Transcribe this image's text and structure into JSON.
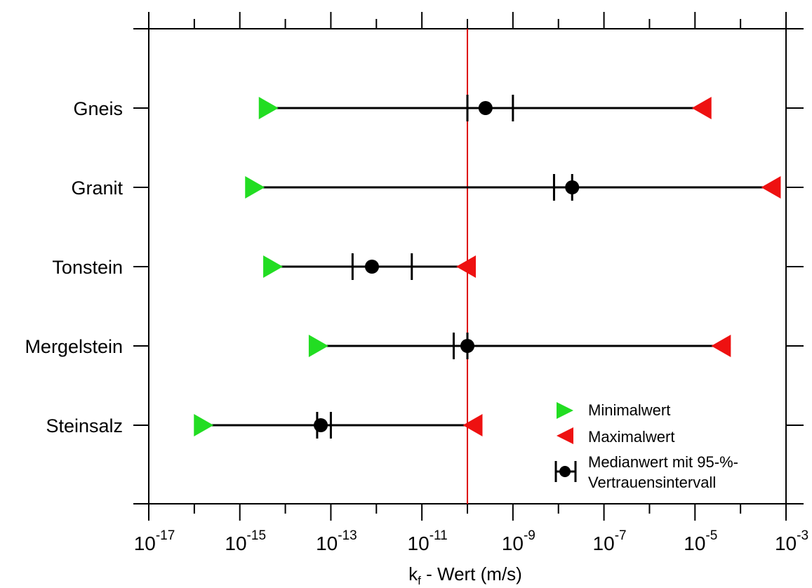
{
  "chart_data": {
    "type": "range",
    "x_scale": "log10",
    "xlim": [
      1e-17,
      0.001
    ],
    "xlabel_base": "k",
    "xlabel_sub": "f",
    "xlabel_rest": " - Wert (m/s)",
    "x_tick_base": "10",
    "x_ticks": [
      {
        "value": 1e-17,
        "exp": "-17"
      },
      {
        "value": 1e-15,
        "exp": "-15"
      },
      {
        "value": 1e-13,
        "exp": "-13"
      },
      {
        "value": 1e-11,
        "exp": "-11"
      },
      {
        "value": 1e-09,
        "exp": "-9"
      },
      {
        "value": 1e-07,
        "exp": "-7"
      },
      {
        "value": 1e-05,
        "exp": "-5"
      },
      {
        "value": 0.001,
        "exp": "-3"
      }
    ],
    "reference_line": {
      "x": 1e-10,
      "color": "#dd0000"
    },
    "categories": [
      "Gneis",
      "Granit",
      "Tonstein",
      "Mergelstein",
      "Steinsalz"
    ],
    "series": [
      {
        "name": "Minimalwert",
        "color": "#22dd22",
        "values": [
          4e-15,
          2e-15,
          5e-15,
          5e-14,
          1.5e-16
        ]
      },
      {
        "name": "Maximalwert",
        "color": "#ee1111",
        "values": [
          1.5e-05,
          0.0005,
          1e-10,
          4e-05,
          1.4e-10
        ]
      },
      {
        "name": "Median",
        "color": "#000000",
        "values": [
          2.5e-10,
          2e-08,
          8e-13,
          1e-10,
          6e-14
        ]
      },
      {
        "name": "CI lower",
        "values": [
          1e-10,
          8e-09,
          3e-13,
          5e-11,
          5e-14
        ]
      },
      {
        "name": "CI upper",
        "values": [
          1e-09,
          2e-08,
          6e-12,
          1e-10,
          1e-13
        ]
      }
    ],
    "legend": {
      "position": "bottom-right",
      "entries": [
        {
          "text": [
            "Minimalwert"
          ]
        },
        {
          "text": [
            "Maximalwert"
          ]
        },
        {
          "text": [
            "Medianwert mit 95-%-",
            "Vertrauensintervall"
          ]
        }
      ]
    }
  }
}
